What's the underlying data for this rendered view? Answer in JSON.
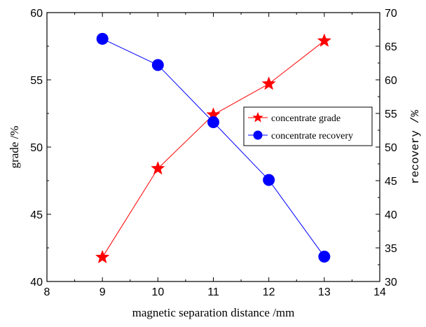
{
  "chart_data": {
    "type": "line",
    "xlabel": "magnetic separation distance /mm",
    "ylabel_left": "grade /%",
    "ylabel_right": "recovery /%",
    "xlim": [
      8,
      14
    ],
    "ylim_left": [
      40,
      60
    ],
    "ylim_right": [
      30,
      70
    ],
    "xticks": [
      8,
      9,
      10,
      11,
      12,
      13,
      14
    ],
    "yticks_left": [
      40,
      45,
      50,
      55,
      60
    ],
    "yticks_right": [
      30,
      35,
      40,
      45,
      50,
      55,
      60,
      65,
      70
    ],
    "grid": false,
    "legend_position": "center-right",
    "x": [
      9,
      10,
      11,
      12,
      13
    ],
    "series": [
      {
        "name": "concentrate grade",
        "axis": "left",
        "values": [
          41.8,
          48.4,
          52.4,
          54.7,
          57.9
        ],
        "color": "#ff0000",
        "marker": "star"
      },
      {
        "name": "concentrate recovery",
        "axis": "right",
        "values": [
          66.1,
          62.2,
          53.7,
          45.1,
          33.7
        ],
        "color": "#0000ff",
        "marker": "circle"
      }
    ]
  }
}
